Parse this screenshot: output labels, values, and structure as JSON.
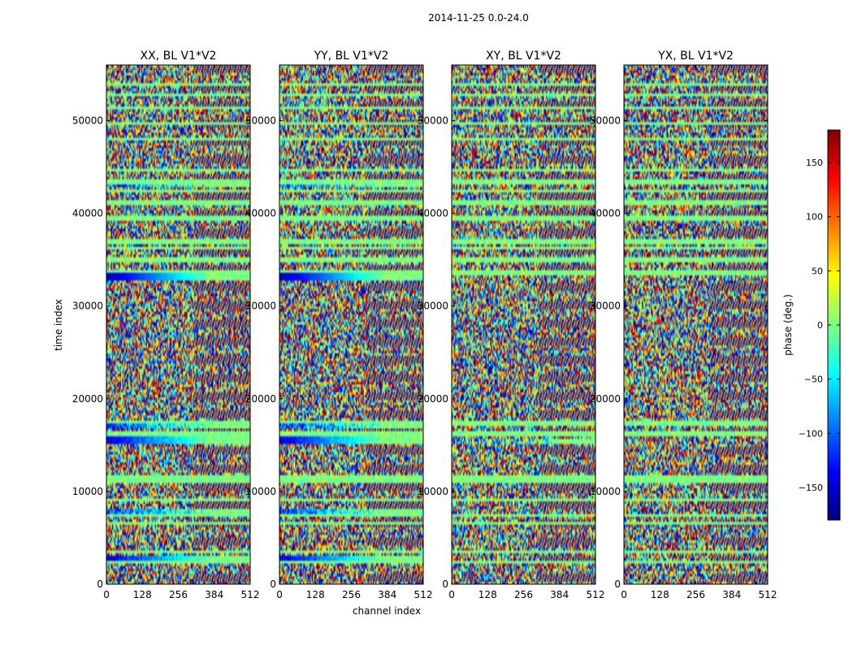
{
  "chart_data": {
    "type": "heatmap",
    "title": "2014-11-25 0.0-24.0",
    "xlabel": "channel index",
    "ylabel": "time index",
    "xlim": [
      0,
      512
    ],
    "ylim": [
      0,
      56000
    ],
    "x_ticks": [
      0,
      128,
      256,
      384,
      512
    ],
    "y_ticks": [
      0,
      10000,
      20000,
      30000,
      40000,
      50000
    ],
    "panels": [
      {
        "title": "XX, BL V1*V2"
      },
      {
        "title": "YY, BL V1*V2"
      },
      {
        "title": "XY, BL V1*V2"
      },
      {
        "title": "YX, BL V1*V2"
      }
    ],
    "colorbar": {
      "label": "phase (deg.)",
      "range": [
        -180,
        180
      ],
      "ticks": [
        -150,
        -100,
        -50,
        0,
        50,
        100,
        150
      ],
      "tick_labels": [
        "−150",
        "−100",
        "−50",
        "0",
        "50",
        "100",
        "150"
      ],
      "colormap": [
        "#00007f",
        "#0000ff",
        "#007fff",
        "#00ffff",
        "#7fff7f",
        "#ffff00",
        "#ff7f00",
        "#ff0000",
        "#7f0000"
      ]
    }
  }
}
